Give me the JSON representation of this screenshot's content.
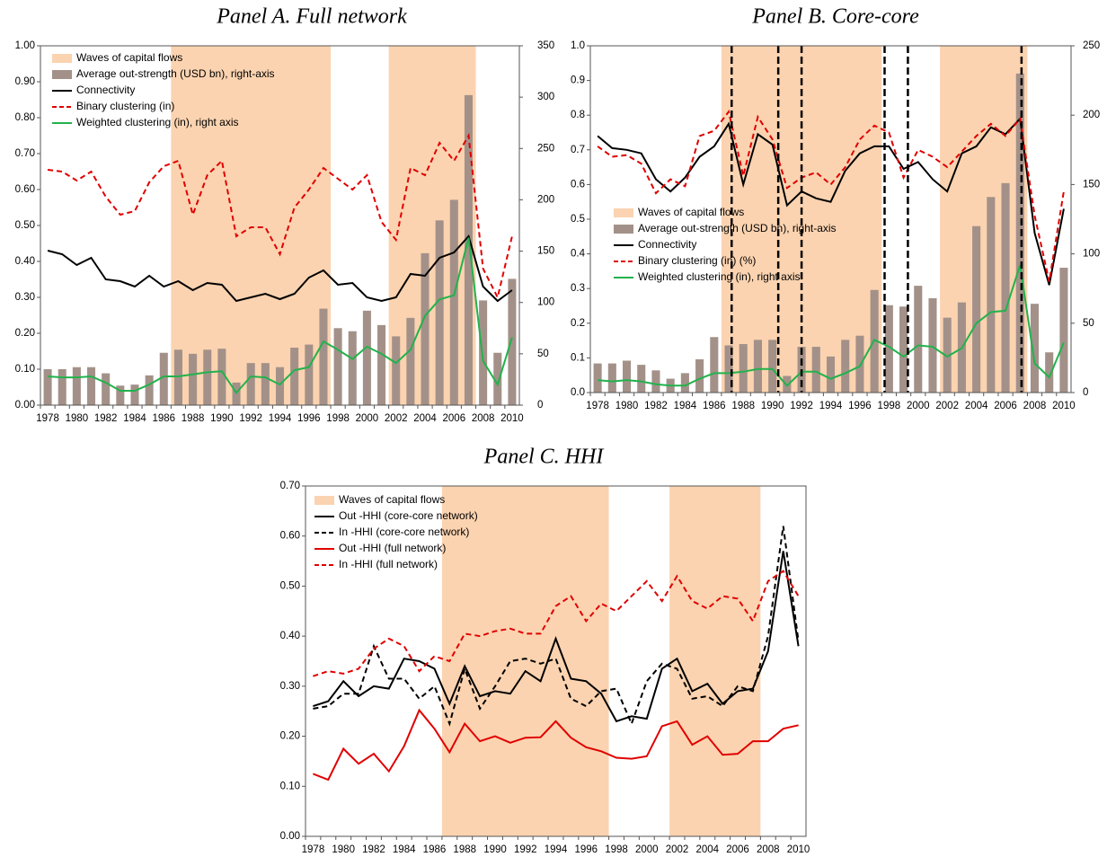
{
  "chart_data": [
    {
      "type": "combo",
      "title": "Panel A. Full network",
      "categories": [
        "1978",
        null,
        "1980",
        null,
        "1982",
        null,
        "1984",
        null,
        "1986",
        null,
        "1988",
        null,
        "1990",
        null,
        "1992",
        null,
        "1994",
        null,
        "1996",
        null,
        "1998",
        null,
        "2000",
        null,
        "2002",
        null,
        "2004",
        null,
        "2006",
        null,
        "2008",
        null,
        "2010"
      ],
      "ylim": [
        0,
        1
      ],
      "yticks": [
        {
          "value": 0,
          "label": "0.00"
        },
        {
          "value": 0.1,
          "label": "0.10"
        },
        {
          "value": 0.2,
          "label": "0.20"
        },
        {
          "value": 0.3,
          "label": "0.30"
        },
        {
          "value": 0.4,
          "label": "0.40"
        },
        {
          "value": 0.5,
          "label": "0.50"
        },
        {
          "value": 0.6,
          "label": "0.60"
        },
        {
          "value": 0.7,
          "label": "0.70"
        },
        {
          "value": 0.8,
          "label": "0.80"
        },
        {
          "value": 0.9,
          "label": "0.90"
        },
        {
          "value": 1,
          "label": "1.00"
        }
      ],
      "y2lim": [
        0,
        350
      ],
      "y2ticks": [
        0,
        50,
        100,
        150,
        200,
        250,
        300,
        350
      ],
      "series": [
        {
          "name": "Waves of capital flows",
          "kind": "band",
          "color": "#fbd3b0",
          "in_wave": [
            false,
            false,
            false,
            false,
            false,
            false,
            false,
            false,
            false,
            true,
            true,
            true,
            true,
            true,
            true,
            true,
            true,
            true,
            true,
            true,
            false,
            false,
            false,
            false,
            true,
            true,
            true,
            true,
            true,
            true,
            false,
            false,
            false
          ]
        },
        {
          "name": "Average out-strength (USD bn), right-axis",
          "kind": "bar",
          "axis": "y2",
          "color": "#a39189",
          "values": [
            35,
            35,
            37,
            37,
            31,
            19,
            20,
            29,
            51,
            54,
            50,
            54,
            55,
            22,
            41,
            41,
            37,
            56,
            59,
            94,
            75,
            72,
            92,
            78,
            67,
            85,
            148,
            180,
            200,
            302,
            102,
            51,
            123
          ]
        },
        {
          "name": "Connectivity",
          "kind": "line",
          "color": "#000000",
          "dash": false,
          "values": [
            0.43,
            0.42,
            0.39,
            0.41,
            0.35,
            0.345,
            0.33,
            0.36,
            0.33,
            0.345,
            0.32,
            0.34,
            0.335,
            0.29,
            0.3,
            0.31,
            0.295,
            0.31,
            0.355,
            0.375,
            0.335,
            0.34,
            0.3,
            0.29,
            0.3,
            0.365,
            0.36,
            0.41,
            0.425,
            0.47,
            0.33,
            0.29,
            0.32
          ]
        },
        {
          "name": "Binary clustering (in)",
          "kind": "line",
          "color": "#e00000",
          "dash": true,
          "values": [
            0.655,
            0.65,
            0.625,
            0.65,
            0.58,
            0.53,
            0.54,
            0.62,
            0.665,
            0.68,
            0.53,
            0.64,
            0.68,
            0.47,
            0.495,
            0.495,
            0.42,
            0.55,
            0.6,
            0.66,
            0.63,
            0.6,
            0.64,
            0.51,
            0.46,
            0.66,
            0.64,
            0.73,
            0.68,
            0.75,
            0.38,
            0.3,
            0.47
          ]
        },
        {
          "name": "Weighted clustering (in), right axis",
          "kind": "line",
          "axis": "y2",
          "color": "#22b24c",
          "dash": false,
          "values": [
            28,
            27,
            27,
            28,
            22,
            14,
            14,
            20,
            28,
            28,
            30,
            32,
            33,
            12,
            28,
            27,
            20,
            34,
            37,
            62,
            54,
            45,
            57,
            50,
            41,
            54,
            87,
            103,
            107,
            163,
            43,
            20,
            66
          ]
        }
      ]
    },
    {
      "type": "combo",
      "title": "Panel B. Core-core",
      "categories": [
        "1978",
        null,
        "1980",
        null,
        "1982",
        null,
        "1984",
        null,
        "1986",
        null,
        "1988",
        null,
        "1990",
        null,
        "1992",
        null,
        "1994",
        null,
        "1996",
        null,
        "1998",
        null,
        "2000",
        null,
        "2002",
        null,
        "2004",
        null,
        "2006",
        null,
        "2008",
        null,
        "2010"
      ],
      "ylim": [
        0,
        1
      ],
      "yticks": [
        {
          "value": 0,
          "label": "0.0"
        },
        0.1,
        0.2,
        0.3,
        0.4,
        0.5,
        0.6,
        0.7,
        0.8,
        0.9,
        {
          "value": 1,
          "label": "1.0"
        }
      ],
      "y2lim": [
        0,
        250
      ],
      "y2ticks": [
        0,
        50,
        100,
        150,
        200,
        250
      ],
      "event_lines": [
        1987.2,
        1990.4,
        1992.0,
        1997.7,
        1999.3,
        2007.1
      ],
      "series": [
        {
          "name": "Waves of capital flows",
          "kind": "band",
          "color": "#fbd3b0",
          "in_wave": [
            false,
            false,
            false,
            false,
            false,
            false,
            false,
            false,
            false,
            true,
            true,
            true,
            true,
            true,
            true,
            true,
            true,
            true,
            true,
            true,
            false,
            false,
            false,
            false,
            true,
            true,
            true,
            true,
            true,
            true,
            false,
            false,
            false
          ]
        },
        {
          "name": "Average out-strength (USD bn), right-axis",
          "kind": "bar",
          "axis": "y2",
          "color": "#a39189",
          "values": [
            21,
            21,
            23,
            20,
            16,
            10,
            14,
            24,
            40,
            34,
            35,
            38,
            38,
            12,
            33,
            33,
            26,
            38,
            41,
            74,
            63,
            62,
            77,
            68,
            54,
            65,
            120,
            141,
            151,
            230,
            64,
            29,
            90
          ]
        },
        {
          "name": "Connectivity",
          "kind": "line",
          "color": "#000000",
          "dash": false,
          "values": [
            0.74,
            0.705,
            0.7,
            0.69,
            0.615,
            0.58,
            0.62,
            0.68,
            0.71,
            0.775,
            0.6,
            0.745,
            0.715,
            0.54,
            0.58,
            0.56,
            0.55,
            0.64,
            0.69,
            0.71,
            0.71,
            0.645,
            0.665,
            0.615,
            0.58,
            0.69,
            0.71,
            0.765,
            0.745,
            0.79,
            0.46,
            0.31,
            0.53
          ]
        },
        {
          "name": "Binary clustering (in) (%)",
          "kind": "line",
          "color": "#e00000",
          "dash": true,
          "values": [
            0.71,
            0.68,
            0.685,
            0.66,
            0.575,
            0.615,
            0.595,
            0.74,
            0.755,
            0.81,
            0.625,
            0.795,
            0.73,
            0.59,
            0.62,
            0.635,
            0.6,
            0.65,
            0.73,
            0.77,
            0.75,
            0.62,
            0.7,
            0.68,
            0.65,
            0.695,
            0.74,
            0.775,
            0.74,
            0.79,
            0.51,
            0.32,
            0.58
          ]
        },
        {
          "name": "Weighted clustering (in), right axis",
          "kind": "line",
          "axis": "y2",
          "color": "#22b24c",
          "dash": false,
          "values": [
            9,
            8,
            9,
            8,
            6,
            5,
            5,
            10,
            14,
            14,
            15,
            17,
            17,
            5,
            15,
            15,
            10,
            14,
            19,
            38,
            33,
            26,
            34,
            33,
            26,
            32,
            50,
            58,
            59,
            92,
            21,
            11,
            36
          ]
        }
      ]
    },
    {
      "type": "line",
      "title": "Panel C. HHI",
      "categories": [
        "1978",
        null,
        "1980",
        null,
        "1982",
        null,
        "1984",
        null,
        "1986",
        null,
        "1988",
        null,
        "1990",
        null,
        "1992",
        null,
        "1994",
        null,
        "1996",
        null,
        "1998",
        null,
        "2000",
        null,
        "2002",
        null,
        "2004",
        null,
        "2006",
        null,
        "2008",
        null,
        "2010"
      ],
      "ylim": [
        0,
        0.7
      ],
      "yticks": [
        {
          "value": 0,
          "label": "0.00"
        },
        {
          "value": 0.1,
          "label": "0.10"
        },
        {
          "value": 0.2,
          "label": "0.20"
        },
        {
          "value": 0.3,
          "label": "0.30"
        },
        {
          "value": 0.4,
          "label": "0.40"
        },
        {
          "value": 0.5,
          "label": "0.50"
        },
        {
          "value": 0.6,
          "label": "0.60"
        },
        {
          "value": 0.7,
          "label": "0.70"
        }
      ],
      "series": [
        {
          "name": "Waves of capital flows",
          "kind": "band",
          "color": "#fbd3b0",
          "in_wave": [
            false,
            false,
            false,
            false,
            false,
            false,
            false,
            false,
            false,
            true,
            true,
            true,
            true,
            true,
            true,
            true,
            true,
            true,
            true,
            true,
            false,
            false,
            false,
            false,
            true,
            true,
            true,
            true,
            true,
            true,
            false,
            false,
            false
          ]
        },
        {
          "name": "Out -HHI (core-core network)",
          "kind": "line",
          "color": "#000000",
          "dash": false,
          "values": [
            0.26,
            0.27,
            0.31,
            0.28,
            0.3,
            0.295,
            0.355,
            0.35,
            0.335,
            0.265,
            0.34,
            0.28,
            0.29,
            0.285,
            0.33,
            0.31,
            0.395,
            0.315,
            0.31,
            0.285,
            0.23,
            0.24,
            0.235,
            0.335,
            0.355,
            0.29,
            0.305,
            0.265,
            0.29,
            0.295,
            0.37,
            0.57,
            0.38
          ]
        },
        {
          "name": "In -HHI (core-core network)",
          "kind": "line",
          "color": "#000000",
          "dash": true,
          "values": [
            0.255,
            0.26,
            0.285,
            0.285,
            0.38,
            0.315,
            0.315,
            0.275,
            0.3,
            0.225,
            0.335,
            0.255,
            0.3,
            0.35,
            0.355,
            0.345,
            0.355,
            0.275,
            0.26,
            0.29,
            0.295,
            0.225,
            0.31,
            0.345,
            0.335,
            0.275,
            0.28,
            0.26,
            0.3,
            0.29,
            0.4,
            0.62,
            0.39
          ]
        },
        {
          "name": "Out -HHI (full network)",
          "kind": "line",
          "color": "#e00000",
          "dash": false,
          "values": [
            0.125,
            0.113,
            0.175,
            0.145,
            0.165,
            0.13,
            0.18,
            0.252,
            0.215,
            0.168,
            0.225,
            0.19,
            0.2,
            0.187,
            0.197,
            0.198,
            0.23,
            0.197,
            0.178,
            0.17,
            0.157,
            0.155,
            0.16,
            0.22,
            0.23,
            0.183,
            0.2,
            0.163,
            0.165,
            0.19,
            0.19,
            0.215,
            0.222
          ]
        },
        {
          "name": "In -HHI (full network)",
          "kind": "line",
          "color": "#e00000",
          "dash": true,
          "values": [
            0.32,
            0.33,
            0.325,
            0.335,
            0.375,
            0.395,
            0.38,
            0.33,
            0.36,
            0.35,
            0.405,
            0.4,
            0.41,
            0.415,
            0.405,
            0.405,
            0.46,
            0.48,
            0.43,
            0.465,
            0.45,
            0.48,
            0.51,
            0.47,
            0.52,
            0.47,
            0.455,
            0.48,
            0.475,
            0.43,
            0.51,
            0.53,
            0.48
          ]
        }
      ]
    }
  ]
}
